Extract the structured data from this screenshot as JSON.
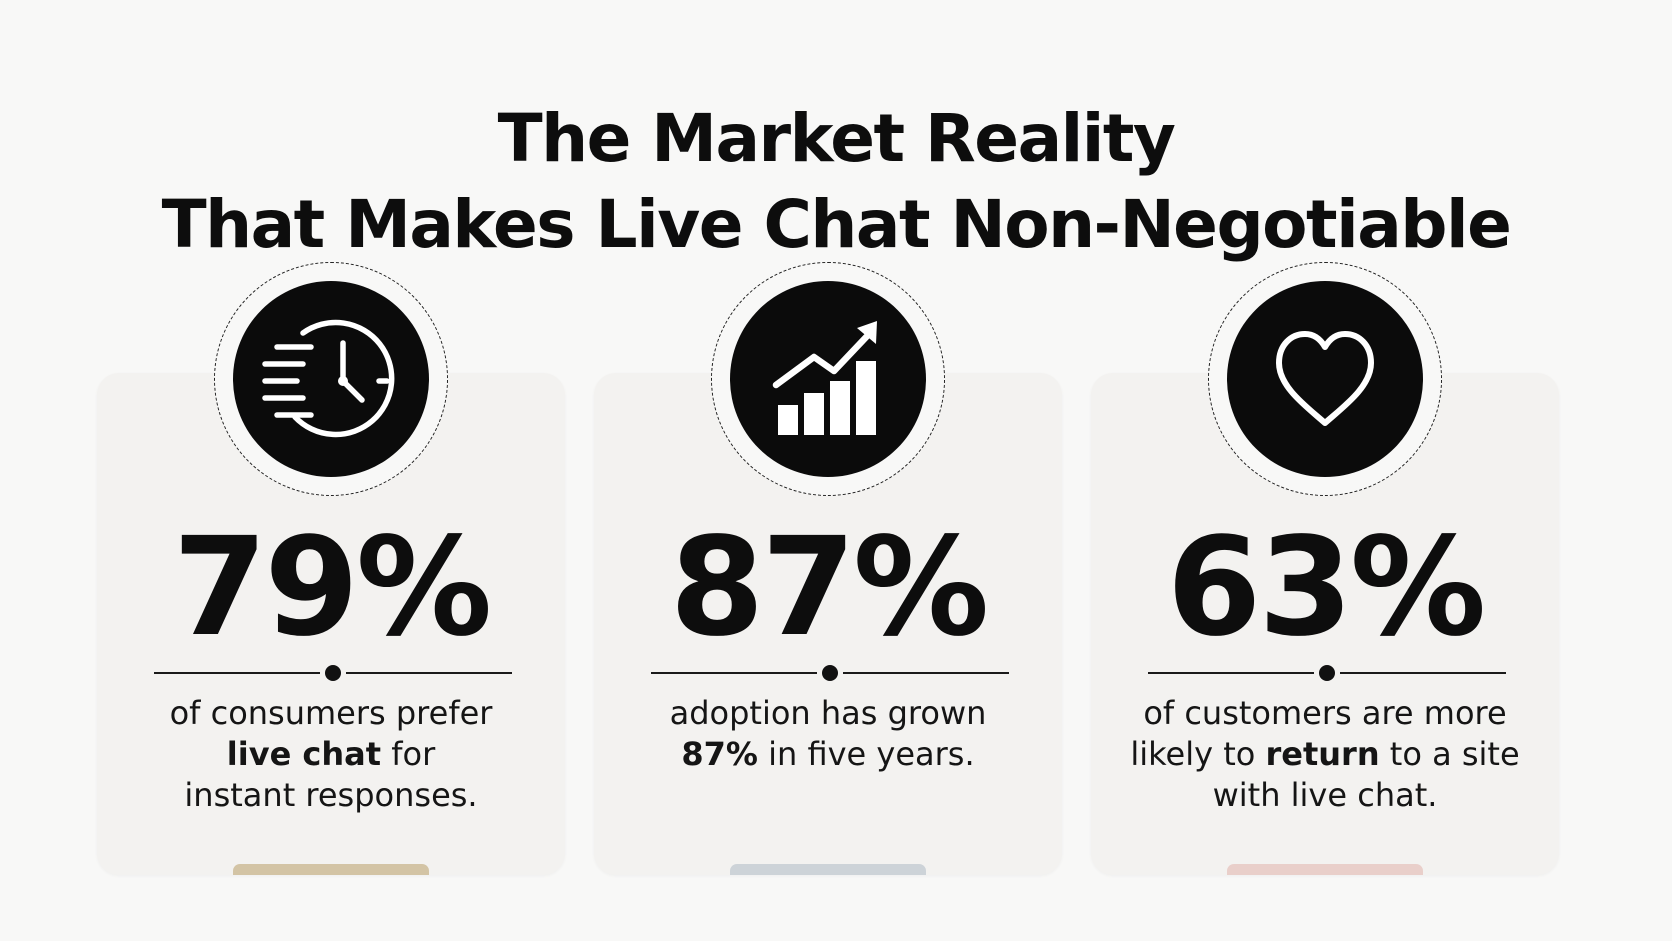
{
  "title": {
    "line1": "The Market Reality",
    "line2": "That Makes Live Chat Non-Negotiable"
  },
  "cards": [
    {
      "icon": "fast-clock-icon",
      "value": "79%",
      "text_before": "of consumers prefer",
      "text_bold": "live chat",
      "text_after": "for",
      "text_end": "instant responses.",
      "accent_color": "#d3c4a5"
    },
    {
      "icon": "growth-chart-icon",
      "value": "87%",
      "text_before": "adoption has grown",
      "text_bold": "87%",
      "text_after": "in five years.",
      "accent_color": "#cdd3d8"
    },
    {
      "icon": "heart-icon",
      "value": "63%",
      "text_before": "of customers are more",
      "text_pre_bold": "likely to",
      "text_bold": "return",
      "text_after": "to a site",
      "text_end": "with live chat.",
      "accent_color": "#e9cfca"
    }
  ]
}
